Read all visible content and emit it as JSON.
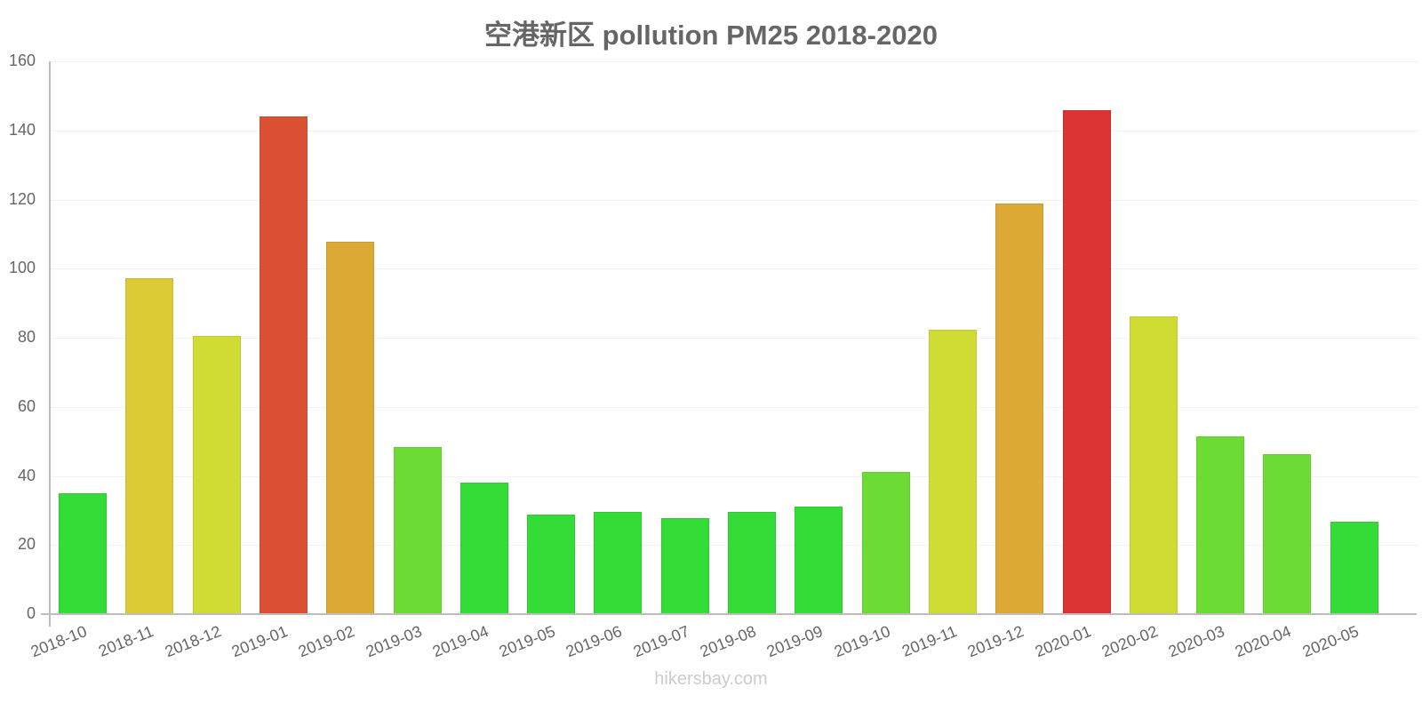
{
  "chart_data": {
    "type": "bar",
    "title": "空港新区 pollution PM25 2018-2020",
    "xlabel": "",
    "ylabel": "",
    "ylim": [
      0,
      160
    ],
    "yticks": [
      0,
      20,
      40,
      60,
      80,
      100,
      120,
      140,
      160
    ],
    "grid": true,
    "legend": null,
    "categories": [
      "2018-10",
      "2018-11",
      "2018-12",
      "2019-01",
      "2019-02",
      "2019-03",
      "2019-04",
      "2019-05",
      "2019-06",
      "2019-07",
      "2019-08",
      "2019-09",
      "2019-10",
      "2019-11",
      "2019-12",
      "2020-01",
      "2020-02",
      "2020-03",
      "2020-04",
      "2020-05"
    ],
    "values": [
      35,
      97.2,
      80.5,
      144.1,
      107.8,
      48.4,
      38.1,
      28.8,
      29.6,
      27.8,
      29.6,
      31.1,
      41.2,
      82.3,
      118.8,
      145.9,
      86.2,
      51.4,
      46.3,
      26.8
    ],
    "colors": [
      "#34dc37",
      "#dccb34",
      "#cfdc34",
      "#dc5134",
      "#dca934",
      "#6cdc34",
      "#34dc37",
      "#34dc37",
      "#34dc37",
      "#34dc37",
      "#34dc37",
      "#34dc37",
      "#6cdc34",
      "#cfdc34",
      "#dca934",
      "#dc3434",
      "#cfdc34",
      "#6cdc34",
      "#6cdc34",
      "#34dc37"
    ]
  },
  "watermark": "hikersbay.com"
}
